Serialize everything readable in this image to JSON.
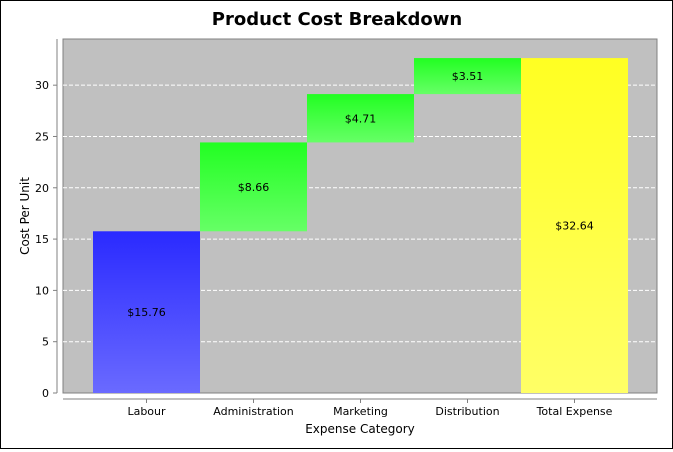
{
  "chart_data": {
    "type": "bar",
    "subtype": "waterfall",
    "title": "Product Cost Breakdown",
    "xlabel": "Expense Category",
    "ylabel": "Cost Per Unit",
    "categories": [
      "Labour",
      "Administration",
      "Marketing",
      "Distribution",
      "Total Expense"
    ],
    "values": [
      15.76,
      8.66,
      4.71,
      3.51,
      32.64
    ],
    "data_labels": [
      "$15.76",
      "$8.66",
      "$4.71",
      "$3.51",
      "$32.64"
    ],
    "ylim": [
      0,
      34.5
    ],
    "yticks": [
      0,
      5,
      10,
      15,
      20,
      25,
      30
    ],
    "grid": true,
    "legend": "none",
    "colors": {
      "plot_background": "#c0c0c0",
      "first_bar_top": "#2a2aff",
      "first_bar_bottom": "#6a6aff",
      "step_bar_top": "#22ff22",
      "step_bar_bottom": "#66ff66",
      "total_bar_top": "#ffff22",
      "total_bar_bottom": "#ffff66",
      "gridline": "#ffffff"
    }
  }
}
